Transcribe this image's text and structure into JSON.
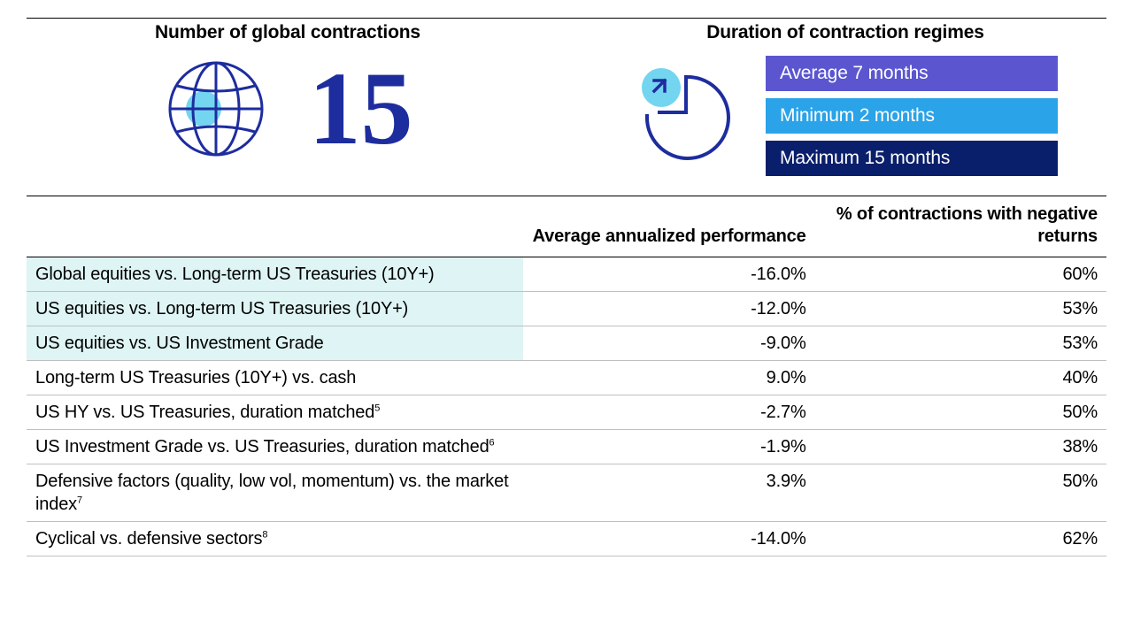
{
  "top": {
    "left": {
      "title": "Number of global contractions",
      "number": "15",
      "number_color": "#1d2d9e",
      "globe_stroke": "#1d2d9e",
      "globe_dot_fill": "#73d5f0"
    },
    "right": {
      "title": "Duration of contraction regimes",
      "circle_stroke": "#1d2d9e",
      "circle_dot_fill": "#73d5f0",
      "bars": [
        {
          "label": "Average 7 months",
          "bg": "#5b56cf"
        },
        {
          "label": "Minimum 2 months",
          "bg": "#2aa3e8"
        },
        {
          "label": "Maximum 15 months",
          "bg": "#0a1f6b"
        }
      ]
    }
  },
  "table": {
    "headers": {
      "col1": "",
      "col2": "Average annualized performance",
      "col3": "% of contractions with negative returns"
    },
    "row_highlight_bg": "#dff4f4",
    "rows": [
      {
        "label": "Global equities vs. Long-term US Treasuries (10Y+)",
        "perf": "-16.0%",
        "neg": "60%",
        "hl": true,
        "sup": ""
      },
      {
        "label": "US equities vs. Long-term US Treasuries (10Y+)",
        "perf": "-12.0%",
        "neg": "53%",
        "hl": true,
        "sup": ""
      },
      {
        "label": "US equities vs. US Investment Grade",
        "perf": "-9.0%",
        "neg": "53%",
        "hl": true,
        "sup": ""
      },
      {
        "label": "Long-term US Treasuries (10Y+) vs. cash",
        "perf": "9.0%",
        "neg": "40%",
        "hl": false,
        "sup": ""
      },
      {
        "label": "US HY vs. US Treasuries, duration matched",
        "perf": "-2.7%",
        "neg": "50%",
        "hl": false,
        "sup": "5"
      },
      {
        "label": "US Investment Grade vs. US Treasuries, duration matched",
        "perf": "-1.9%",
        "neg": "38%",
        "hl": false,
        "sup": "6"
      },
      {
        "label": "Defensive factors (quality, low vol, momentum) vs. the market index",
        "perf": "3.9%",
        "neg": "50%",
        "hl": false,
        "sup": "7"
      },
      {
        "label": "Cyclical vs. defensive sectors",
        "perf": "-14.0%",
        "neg": "62%",
        "hl": false,
        "sup": "8"
      }
    ]
  }
}
